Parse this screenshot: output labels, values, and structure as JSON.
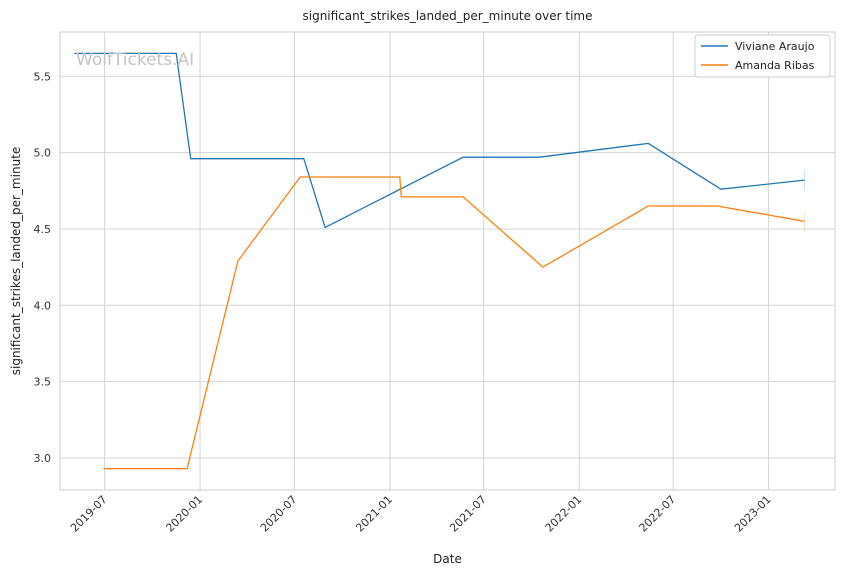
{
  "chart_data": {
    "type": "line",
    "title": "significant_strikes_landed_per_minute over time",
    "xlabel": "Date",
    "ylabel": "significant_strikes_landed_per_minute",
    "watermark": "WolfTickets.AI",
    "x_ticks": [
      "2019-07",
      "2020-01",
      "2020-07",
      "2021-01",
      "2021-07",
      "2022-01",
      "2022-07",
      "2023-01"
    ],
    "y_ticks": [
      "3.0",
      "3.5",
      "4.0",
      "4.5",
      "5.0",
      "5.5"
    ],
    "xlim": [
      "2019-04-06",
      "2023-05-09"
    ],
    "ylim": [
      2.79,
      5.79
    ],
    "grid": true,
    "legend_position": "top-right",
    "series": [
      {
        "name": "Viviane Araujo",
        "color": "#1f77b4",
        "points": [
          [
            "2019-05-04",
            5.65
          ],
          [
            "2019-11-16",
            5.65
          ],
          [
            "2019-12-14",
            4.96
          ],
          [
            "2020-07-19",
            4.96
          ],
          [
            "2020-08-29",
            4.51
          ],
          [
            "2021-05-22",
            4.97
          ],
          [
            "2021-10-16",
            4.97
          ],
          [
            "2022-05-14",
            5.06
          ],
          [
            "2022-10-01",
            4.76
          ],
          [
            "2023-03-11",
            4.82
          ]
        ]
      },
      {
        "name": "Amanda Ribas",
        "color": "#ff7f0e",
        "points": [
          [
            "2019-06-29",
            2.93
          ],
          [
            "2019-12-07",
            2.93
          ],
          [
            "2020-03-14",
            4.29
          ],
          [
            "2020-07-12",
            4.84
          ],
          [
            "2021-01-20",
            4.84
          ],
          [
            "2021-01-23",
            4.71
          ],
          [
            "2021-05-22",
            4.71
          ],
          [
            "2021-10-23",
            4.25
          ],
          [
            "2022-05-14",
            4.65
          ],
          [
            "2022-09-24",
            4.65
          ],
          [
            "2023-03-11",
            4.55
          ]
        ]
      }
    ]
  }
}
